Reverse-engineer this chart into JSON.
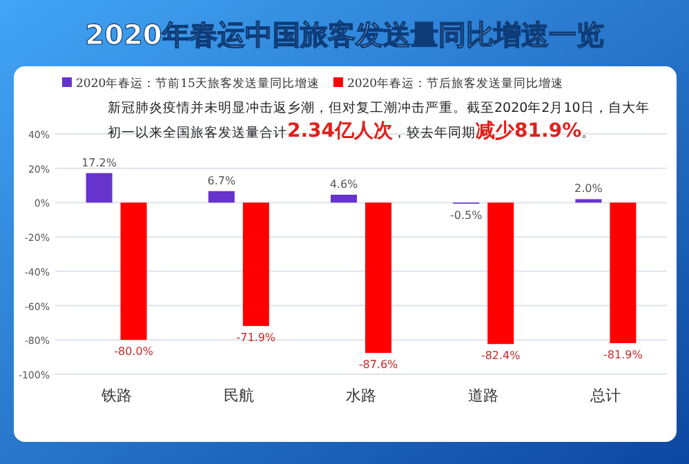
{
  "chart_data": {
    "type": "bar",
    "title": "2020年春运中国旅客发送量同比增速一览",
    "categories": [
      "铁路",
      "民航",
      "水路",
      "道路",
      "总计"
    ],
    "series": [
      {
        "name": "2020年春运：节前15天旅客发送量同比增速",
        "color": "#6633cc",
        "values": [
          17.2,
          6.7,
          4.6,
          -0.5,
          2.0
        ],
        "value_labels": [
          "17.2%",
          "6.7%",
          "4.6%",
          "-0.5%",
          "2.0%"
        ]
      },
      {
        "name": "2020年春运：节后旅客发送量同比增速",
        "color": "#ff0000",
        "values": [
          -80.0,
          -71.9,
          -87.6,
          -82.4,
          -81.9
        ],
        "value_labels": [
          "-80.0%",
          "-71.9%",
          "-87.6%",
          "-82.4%",
          "-81.9%"
        ]
      }
    ],
    "ylim": [
      -100,
      40
    ],
    "yticks": [
      {
        "value": 40,
        "label": "40%"
      },
      {
        "value": 20,
        "label": "20%"
      },
      {
        "value": 0,
        "label": "0%"
      },
      {
        "value": -20,
        "label": "-20%"
      },
      {
        "value": -40,
        "label": "-40%"
      },
      {
        "value": -60,
        "label": "-60%"
      },
      {
        "value": -80,
        "label": "-80%"
      },
      {
        "value": -100,
        "label": "-100%"
      }
    ],
    "grid": "y",
    "legend": "top",
    "annotations": [
      "新冠肺炎疫情并未明显冲击返乡潮，但对复工潮冲击严重。截至2020年2月10日，自大年初一以来全国旅客发送量合计**2.34亿人次**，较去年同期**减少81.9%**。"
    ]
  }
}
